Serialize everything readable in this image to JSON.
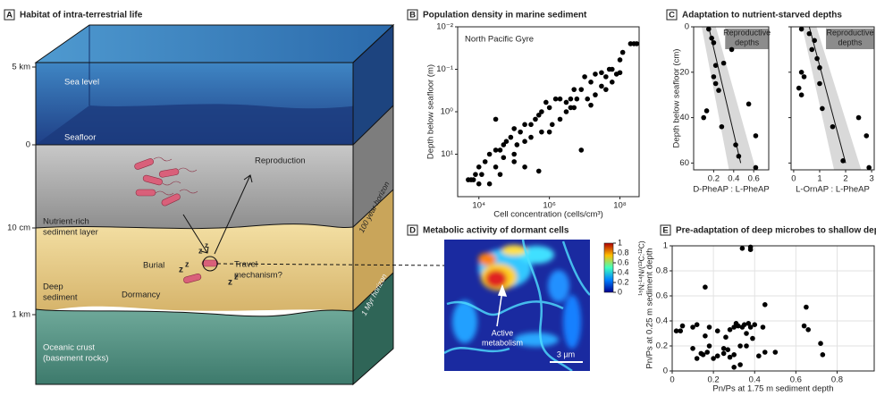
{
  "diagram": {
    "letter": "A",
    "title": "Habitat of intra-terrestrial life",
    "depth_labels": [
      "5 km",
      "0",
      "10 cm",
      "1 km"
    ],
    "sea_level": "Sea level",
    "seafloor": "Seafloor",
    "nutrient_layer": [
      "Nutrient-rich",
      "sediment layer"
    ],
    "reproduction": "Reproduction",
    "burial": "Burial",
    "travel": [
      "Travel",
      "mechanism?"
    ],
    "dormancy": "Dormancy",
    "deep_sediment": [
      "Deep",
      "sediment"
    ],
    "crust": [
      "Oceanic crust",
      "(basement rocks)"
    ],
    "horizon_100y": "100 year horizon",
    "horizon_1myr": "1 Myr horizon",
    "sleep": "z"
  },
  "chart_data": [
    {
      "type": "scatter",
      "letter": "B",
      "title": "Population density in marine sediment",
      "annotation": "North Pacific Gyre",
      "x_label": "Cell concentration (cells/cm³)",
      "y_label": "Depth below seafloor (m)",
      "color": "#000000",
      "x_log": true,
      "y_log": true,
      "y_inverted": true,
      "xlim": [
        2500,
        350000000
      ],
      "ylim": [
        0.01,
        100
      ],
      "xticks": [
        {
          "value": 10000,
          "label": "10⁴"
        },
        {
          "value": 1000000,
          "label": "10⁶"
        },
        {
          "value": 100000000,
          "label": "10⁸"
        }
      ],
      "yticks": [
        {
          "value": 0.01,
          "label": "10⁻²"
        },
        {
          "value": 0.1,
          "label": "10⁻¹"
        },
        {
          "value": 1,
          "label": "10⁰"
        },
        {
          "value": 10,
          "label": "10¹"
        }
      ],
      "x": [
        200000000,
        250000000,
        300000000,
        120000000,
        100000000,
        60000000,
        50000000,
        80000000,
        40000000,
        30000000,
        60000000,
        100000000,
        40000000,
        20000000,
        30000000,
        15000000,
        10000000,
        20000000,
        8000000,
        5000000,
        12000000,
        6000000,
        4000000,
        3000000,
        5000000,
        2000000,
        1500000,
        3000000,
        1000000,
        800000,
        2000000,
        1200000,
        600000,
        500000,
        1000000,
        400000,
        300000,
        600000,
        200000,
        300000,
        150000,
        100000,
        200000,
        80000,
        120000,
        60000,
        50000,
        100000,
        40000,
        30000,
        50000,
        20000,
        15000,
        30000,
        10000,
        8000,
        12000,
        6000,
        5000,
        20000,
        10000,
        7000,
        40000,
        100000,
        200000,
        8000000,
        15000000,
        4000000,
        30000,
        500000
      ],
      "values": [
        0.025,
        0.025,
        0.025,
        0.04,
        0.06,
        0.1,
        0.1,
        0.13,
        0.15,
        0.12,
        0.2,
        0.12,
        0.3,
        0.13,
        0.25,
        0.2,
        0.15,
        0.4,
        0.3,
        0.3,
        0.5,
        0.5,
        0.5,
        0.6,
        0.8,
        0.5,
        0.5,
        1,
        0.8,
        0.6,
        1.5,
        2,
        1,
        1.2,
        3,
        1.5,
        2,
        3,
        2,
        4,
        3,
        2.5,
        5,
        4,
        6,
        5,
        6,
        10,
        8,
        8,
        12,
        10,
        15,
        20,
        20,
        30,
        30,
        40,
        40,
        50,
        50,
        40,
        30,
        15,
        20,
        8,
        0.7,
        0.8,
        1.5,
        25
      ]
    },
    {
      "type": "scatter",
      "letter": "C",
      "title": "Adaptation to nutrient-starved depths",
      "annotation_lines": [
        "Reproductive",
        "depths"
      ],
      "x_label": "D-PheAP : L-PheAP",
      "y_label": "Depth below seafloor (cm)",
      "color": "#000000",
      "y_inverted": true,
      "xlim": [
        0,
        0.75
      ],
      "ylim": [
        0,
        63
      ],
      "xticks": [
        0.2,
        0.4,
        0.6
      ],
      "yticks": [
        0,
        20,
        40,
        60
      ],
      "x": [
        0.15,
        0.18,
        0.2,
        0.22,
        0.2,
        0.22,
        0.25,
        0.1,
        0.13,
        0.28,
        0.55,
        0.38,
        0.42,
        0.45,
        0.62,
        0.62,
        0.3
      ],
      "values": [
        1,
        5,
        7,
        17,
        22,
        25,
        28,
        40,
        37,
        44,
        34,
        10,
        52,
        57,
        48,
        62,
        16
      ],
      "fit_line": {
        "x": [
          0.15,
          0.47
        ],
        "values": [
          0,
          60
        ]
      }
    },
    {
      "type": "scatter",
      "annotation_lines": [
        "Reproductive",
        "depths"
      ],
      "x_label": "L-OrnAP : L-PheAP",
      "color": "#000000",
      "y_inverted": true,
      "ytick_labels": false,
      "xlim": [
        -0.1,
        3.1
      ],
      "ylim": [
        0,
        63
      ],
      "xticks": [
        0,
        1,
        2,
        3
      ],
      "yticks": [
        0,
        20,
        40,
        60
      ],
      "x": [
        0.3,
        0.6,
        0.8,
        0.7,
        0.9,
        1.0,
        1.0,
        0.3,
        0.4,
        0.3,
        1.1,
        1.5,
        1.9,
        2.5,
        2.8,
        2.9,
        0.2
      ],
      "values": [
        1,
        3,
        6,
        10,
        14,
        18,
        25,
        20,
        22,
        30,
        36,
        44,
        59,
        40,
        48,
        62,
        27
      ],
      "fit_line": {
        "x": [
          0.6,
          2.0
        ],
        "values": [
          0,
          60
        ]
      }
    },
    {
      "type": "heatmap",
      "letter": "D",
      "title": "Metabolic activity of dormant cells",
      "clim": [
        0,
        1
      ],
      "cticks": [
        0,
        0.2,
        0.4,
        0.6,
        0.8,
        1
      ],
      "colorbar_label": "¹⁵N:¹⁴N/(¹³C:¹²C)",
      "annotation": [
        "Active",
        "metabolism"
      ],
      "scale_bar": "3 µm"
    },
    {
      "type": "scatter",
      "letter": "E",
      "title": "Pre-adaptation of deep microbes to shallow depth",
      "grid": true,
      "color": "#000000",
      "x_label": "Pn/Ps at 1.75 m sediment depth",
      "y_label": "Pn/Ps at 0.25 m sediment depth",
      "xlim": [
        0,
        0.98
      ],
      "ylim": [
        0,
        1
      ],
      "xticks": [
        0,
        0.2,
        0.4,
        0.6,
        0.8
      ],
      "yticks": [
        0,
        0.2,
        0.4,
        0.6,
        0.8,
        1
      ],
      "x": [
        0.02,
        0.04,
        0.05,
        0.1,
        0.1,
        0.12,
        0.12,
        0.14,
        0.15,
        0.16,
        0.16,
        0.17,
        0.18,
        0.18,
        0.2,
        0.22,
        0.22,
        0.25,
        0.25,
        0.26,
        0.27,
        0.28,
        0.28,
        0.3,
        0.3,
        0.3,
        0.31,
        0.32,
        0.33,
        0.33,
        0.34,
        0.34,
        0.35,
        0.36,
        0.36,
        0.37,
        0.38,
        0.38,
        0.38,
        0.39,
        0.4,
        0.42,
        0.44,
        0.45,
        0.45,
        0.5,
        0.64,
        0.65,
        0.66,
        0.72,
        0.73
      ],
      "values": [
        0.32,
        0.32,
        0.36,
        0.35,
        0.18,
        0.37,
        0.1,
        0.14,
        0.13,
        0.67,
        0.28,
        0.15,
        0.2,
        0.35,
        0.1,
        0.12,
        0.32,
        0.18,
        0.14,
        0.27,
        0.17,
        0.33,
        0.11,
        0.35,
        0.03,
        0.13,
        0.38,
        0.36,
        0.2,
        0.05,
        0.98,
        0.35,
        0.37,
        0.3,
        0.2,
        0.38,
        0.97,
        0.99,
        0.35,
        0.26,
        0.37,
        0.12,
        0.35,
        0.53,
        0.15,
        0.15,
        0.36,
        0.51,
        0.33,
        0.22,
        0.13
      ]
    }
  ]
}
